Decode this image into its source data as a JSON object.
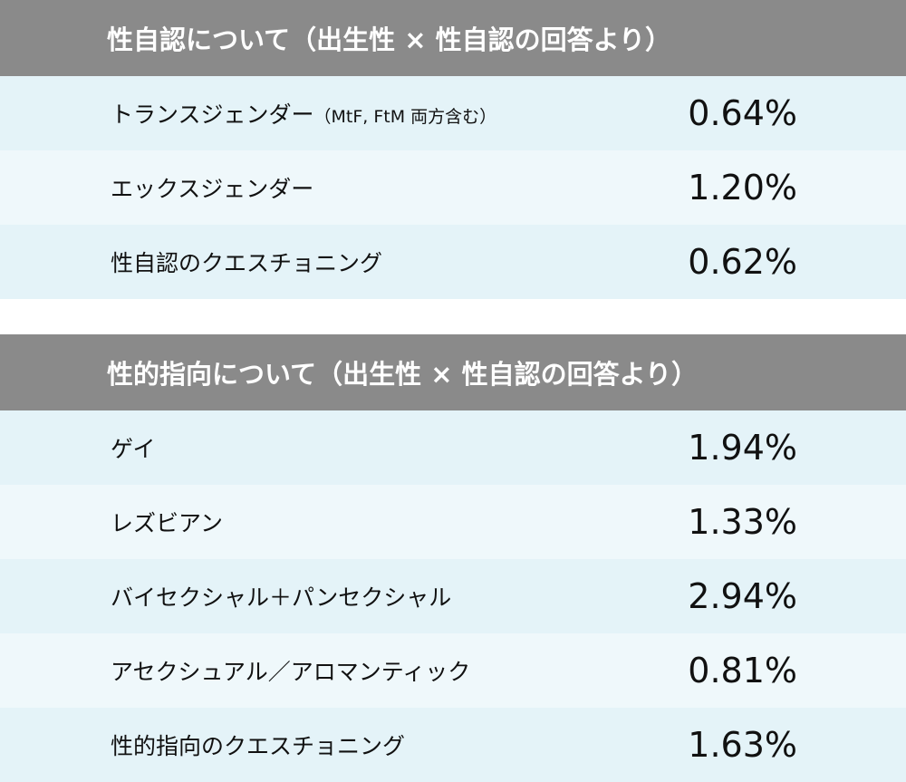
{
  "gender_identity": {
    "title": "性自認について（出生性 × 性自認の回答より）",
    "rows": [
      {
        "label": "トランスジェンダー",
        "note": "（MtF, FtM 両方含む）",
        "value": "0.64%"
      },
      {
        "label": "エックスジェンダー",
        "value": "1.20%"
      },
      {
        "label": "性自認のクエスチョニング",
        "value": "0.62%"
      }
    ]
  },
  "sexual_orientation": {
    "title": "性的指向について（出生性 × 性自認の回答より）",
    "rows": [
      {
        "label": "ゲイ",
        "value": "1.94%"
      },
      {
        "label": "レズビアン",
        "value": "1.33%"
      },
      {
        "label": "バイセクシャル＋パンセクシャル",
        "value": "2.94%"
      },
      {
        "label": "アセクシュアル／アロマンティック",
        "value": "0.81%"
      },
      {
        "label": "性的指向のクエスチョニング",
        "value": "1.63%"
      }
    ]
  },
  "colors": {
    "header": "#8a8a8a",
    "row_a": "#e4f3f8",
    "row_b": "#eff8fb"
  }
}
